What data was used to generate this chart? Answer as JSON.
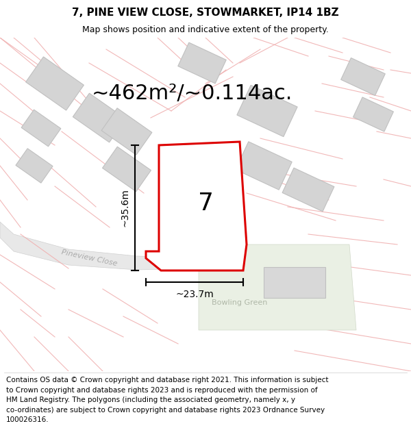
{
  "title": "7, PINE VIEW CLOSE, STOWMARKET, IP14 1BZ",
  "subtitle": "Map shows position and indicative extent of the property.",
  "footer_lines": [
    "Contains OS data © Crown copyright and database right 2021. This information is subject",
    "to Crown copyright and database rights 2023 and is reproduced with the permission of",
    "HM Land Registry. The polygons (including the associated geometry, namely x, y",
    "co-ordinates) are subject to Crown copyright and database rights 2023 Ordnance Survey",
    "100026316."
  ],
  "area_label": "~462m²/~0.114ac.",
  "width_label": "~23.7m",
  "height_label": "~35.6m",
  "plot_number": "7",
  "map_bg": "#ffffff",
  "road_line_color": "#f0b0b0",
  "plot_edge": "#dd0000",
  "building_fill": "#d4d4d4",
  "building_edge": "#c0c0c0",
  "bowling_green_fill": "#eaf0e4",
  "pineview_fill": "#e8e8e8",
  "pineview_edge": "#d0d0d0",
  "title_fontsize": 11,
  "subtitle_fontsize": 9,
  "footer_fontsize": 7.5,
  "area_fontsize": 22,
  "dim_fontsize": 10,
  "plot_label_fontsize": 26
}
